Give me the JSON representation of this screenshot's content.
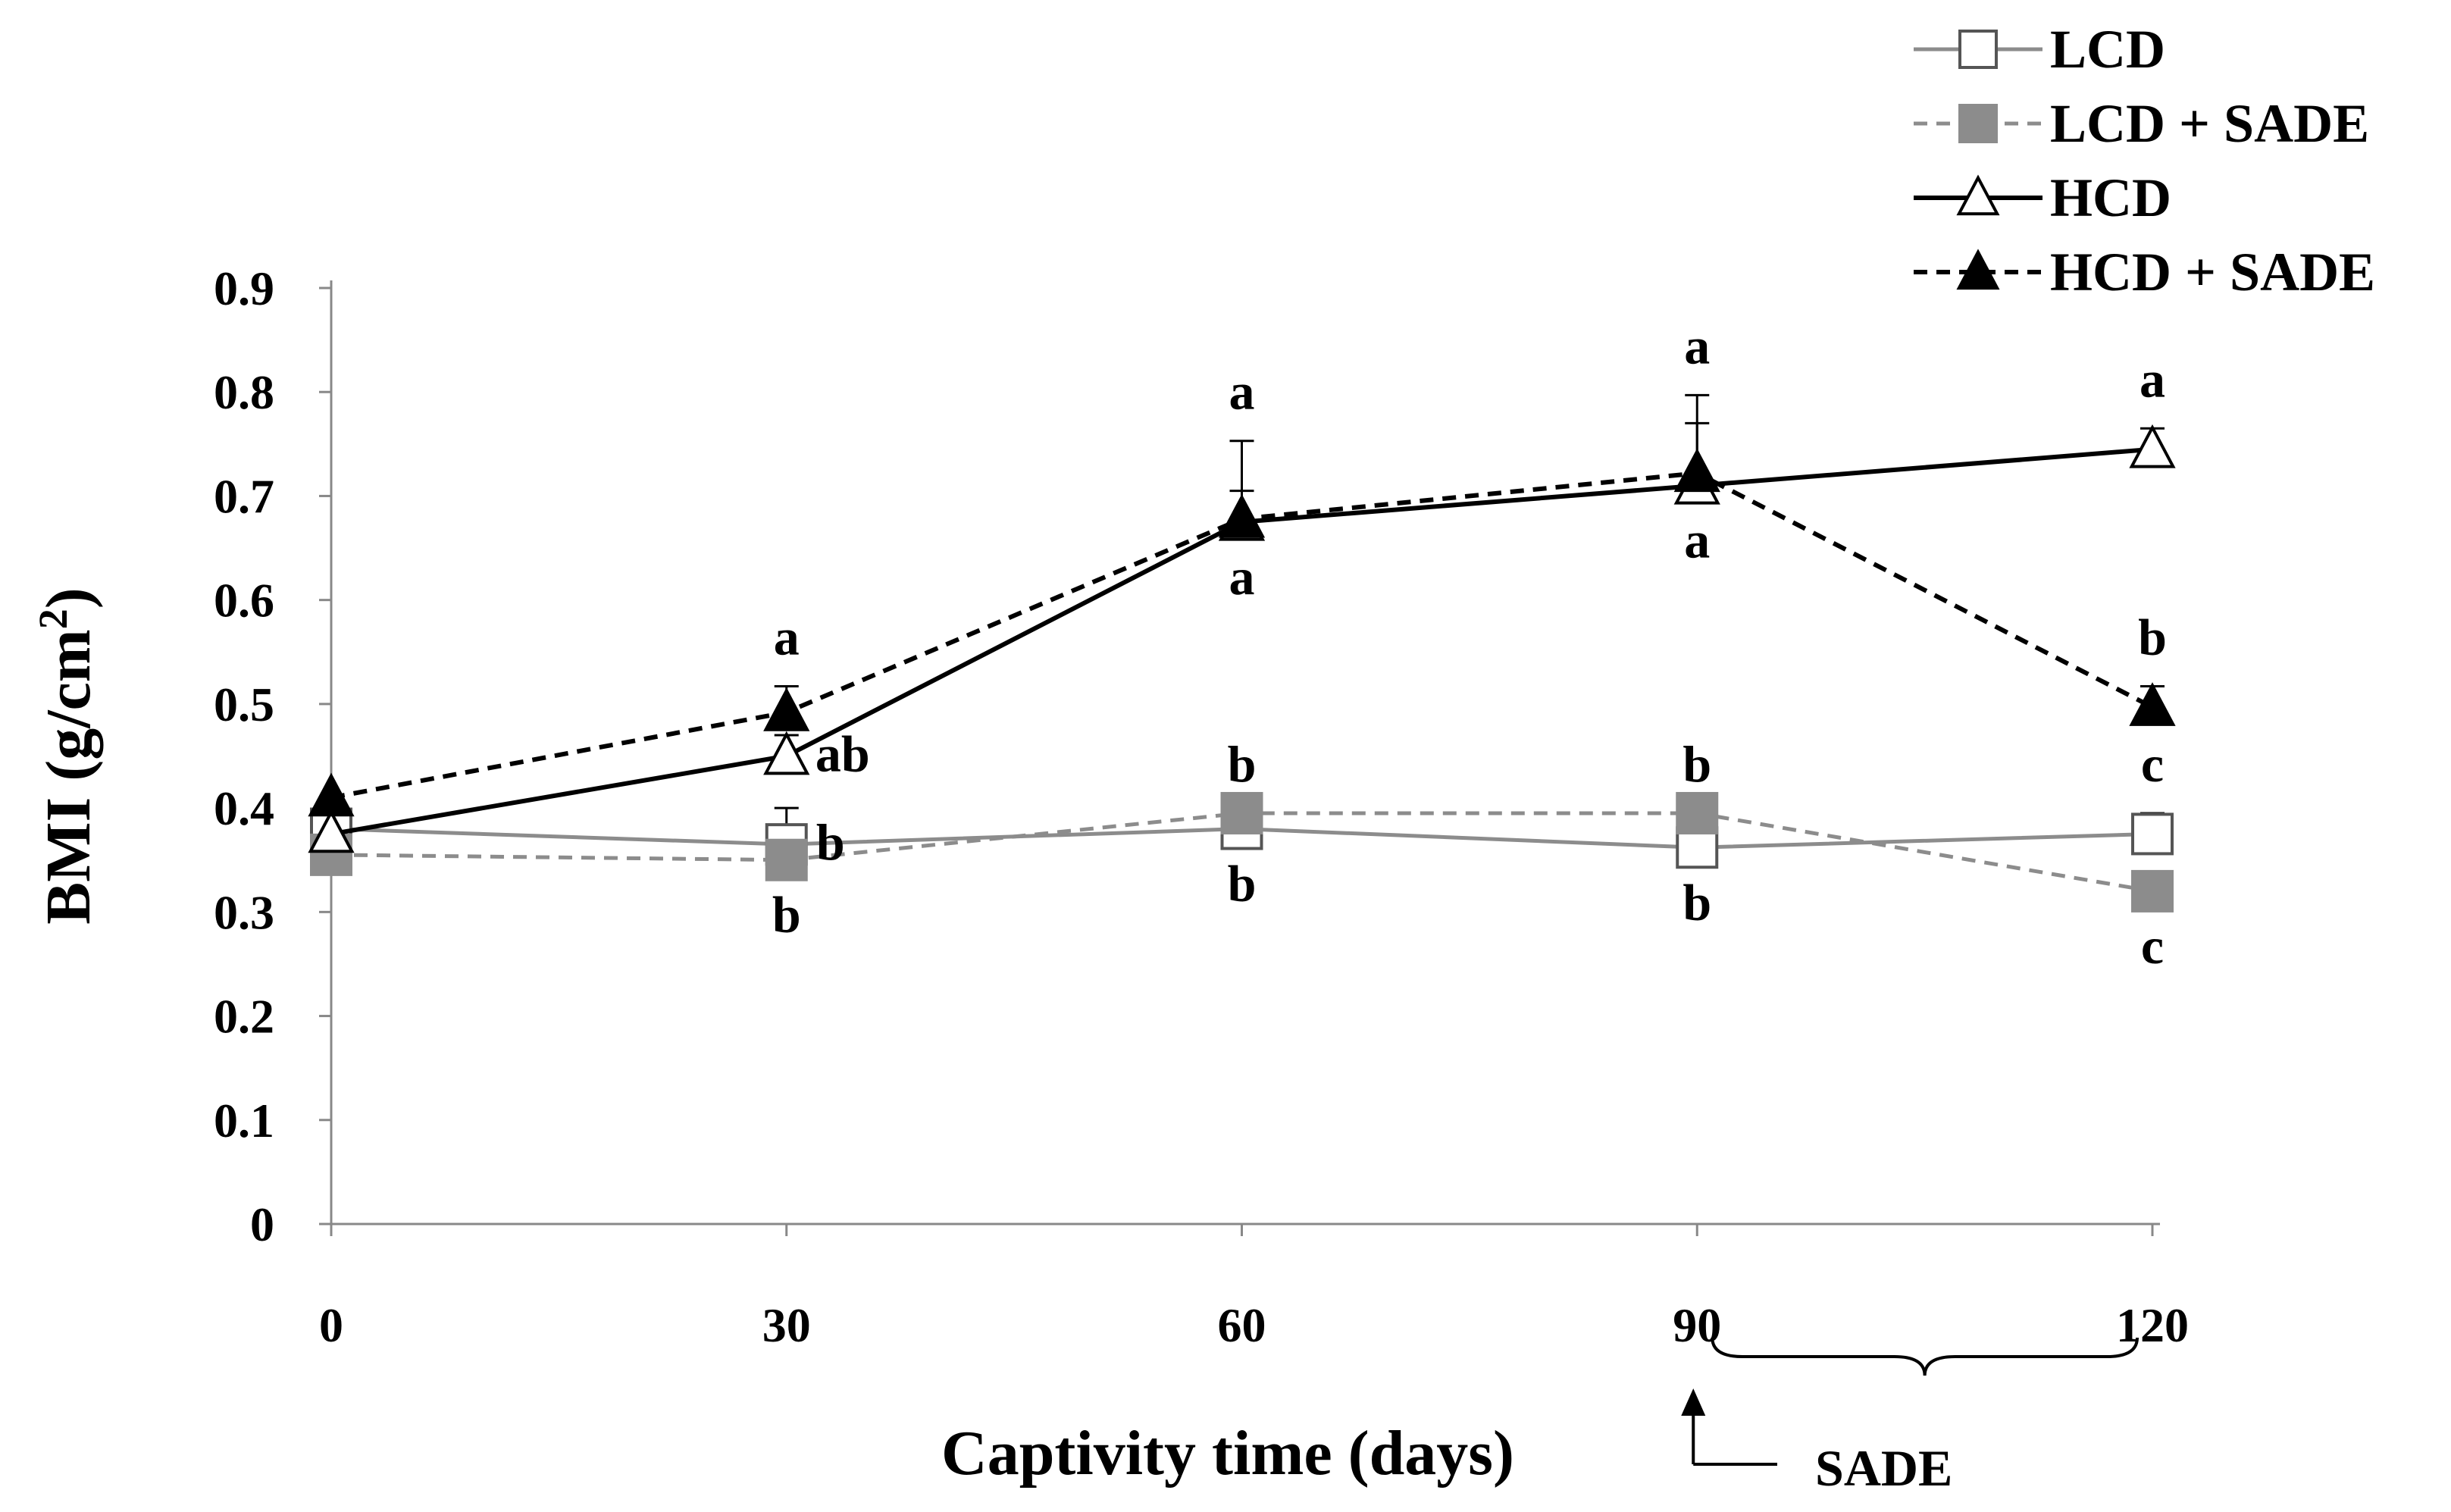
{
  "chart_data": {
    "type": "line",
    "ylabel": "BMI (g/cm",
    "ylabel_sup": "2",
    "ylabel_end": ")",
    "xlabel": "Captivity time (days)",
    "x": [
      0,
      30,
      60,
      90,
      120
    ],
    "x_tick_labels": [
      "0",
      "30",
      "60",
      "90",
      "120"
    ],
    "ylim": [
      0,
      0.9
    ],
    "y_ticks": [
      0,
      0.1,
      0.2,
      0.3,
      0.4,
      0.5,
      0.6,
      0.7,
      0.8,
      0.9
    ],
    "y_tick_labels": [
      "0",
      "0.1",
      "0.2",
      "0.3",
      "0.4",
      "0.5",
      "0.6",
      "0.7",
      "0.8",
      "0.9"
    ],
    "series": [
      {
        "name": "LCD",
        "values": [
          0.38,
          0.365,
          0.38,
          0.362,
          0.375
        ],
        "errors": [
          0.0,
          0.035,
          0.0,
          0.0,
          0.02
        ],
        "color": "#8c8c8c",
        "dashed": false,
        "marker": "square-open",
        "letters": [
          "",
          "b",
          "b",
          "b",
          "c"
        ],
        "letter_side": [
          "",
          "right",
          "below",
          "below",
          "above"
        ]
      },
      {
        "name": "LCD + SADE",
        "values": [
          0.355,
          0.35,
          0.395,
          0.395,
          0.32
        ],
        "errors": [
          0.0,
          0.0,
          0.0,
          0.0,
          0.0
        ],
        "color": "#8c8c8c",
        "dashed": true,
        "marker": "square-filled",
        "letters": [
          "",
          "b",
          "b",
          "b",
          "c"
        ],
        "letter_side": [
          "",
          "below",
          "above",
          "above",
          "below"
        ]
      },
      {
        "name": "HCD",
        "values": [
          0.375,
          0.45,
          0.675,
          0.71,
          0.745
        ],
        "errors": [
          0.0,
          0.02,
          0.03,
          0.06,
          0.02
        ],
        "color": "#000000",
        "dashed": false,
        "marker": "triangle-open",
        "letters": [
          "",
          "ab",
          "a",
          "a",
          "a"
        ],
        "letter_side": [
          "",
          "right",
          "below",
          "below",
          "above"
        ]
      },
      {
        "name": "HCD + SADE",
        "values": [
          0.41,
          0.492,
          0.678,
          0.722,
          0.497
        ],
        "errors": [
          0.0,
          0.025,
          0.075,
          0.075,
          0.02
        ],
        "color": "#000000",
        "dashed": true,
        "marker": "triangle-filled",
        "letters": [
          "",
          "a",
          "a",
          "a",
          "b"
        ],
        "letter_side": [
          "",
          "above",
          "above",
          "above",
          "above"
        ]
      }
    ],
    "annotation": {
      "text": "SADE",
      "brace_from_x": 90,
      "brace_to_x": 120,
      "arrow_at_x": 90
    },
    "legend_position": "top-right"
  }
}
